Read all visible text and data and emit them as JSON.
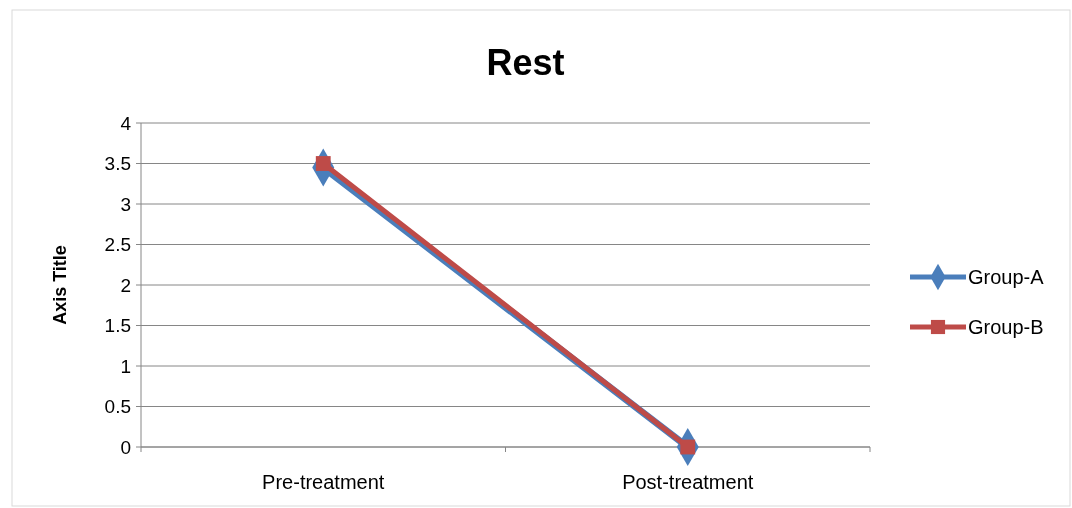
{
  "chart_data": {
    "type": "line",
    "title": "Rest",
    "ylabel": "Axis Title",
    "categories": [
      "Pre-treatment",
      "Post-treatment"
    ],
    "series": [
      {
        "name": "Group-A",
        "color": "#4a7ebb",
        "values": [
          3.45,
          0
        ],
        "marker": "diamond"
      },
      {
        "name": "Group-B",
        "color": "#be4b48",
        "values": [
          3.5,
          0
        ],
        "marker": "square"
      }
    ],
    "ylim": [
      0,
      4
    ],
    "yticks": [
      0,
      0.5,
      1,
      1.5,
      2,
      2.5,
      3,
      3.5,
      4
    ],
    "grid": "y",
    "legend": "right",
    "line_style": "solid"
  }
}
